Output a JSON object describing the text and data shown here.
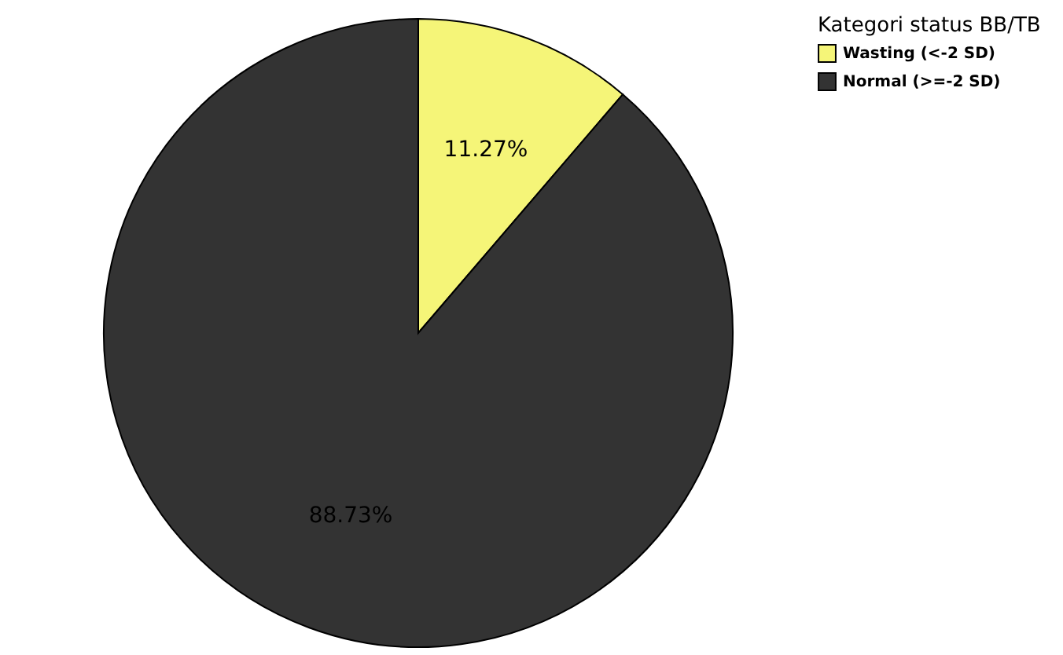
{
  "chart_data": {
    "type": "pie",
    "legend_title": "Kategori status BB/TB",
    "legend": "top right",
    "categories": [
      "Wasting (<-2 SD)",
      "Normal (>=-2 SD)"
    ],
    "values": [
      11.27,
      88.73
    ],
    "colors": [
      "#f5f578",
      "#333333"
    ],
    "value_labels": [
      "11.27%",
      "88.73%"
    ]
  }
}
